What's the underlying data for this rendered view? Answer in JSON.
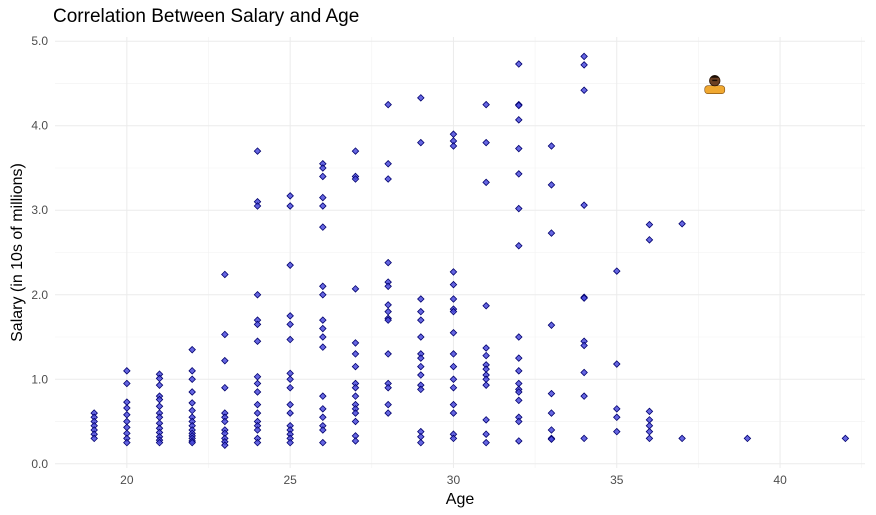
{
  "chart_data": {
    "type": "scatter",
    "title": "Correlation Between Salary and Age",
    "xlabel": "Age",
    "ylabel": "Salary (in 10s of millions)",
    "xlim": [
      17.8,
      42.6
    ],
    "ylim": [
      -0.05,
      5.05
    ],
    "x_ticks": [
      20,
      25,
      30,
      35,
      40
    ],
    "y_ticks": [
      0.0,
      1.0,
      2.0,
      3.0,
      4.0,
      5.0
    ],
    "x_tick_labels": [
      "20",
      "25",
      "30",
      "35",
      "40"
    ],
    "y_tick_labels": [
      "0.0",
      "1.0",
      "2.0",
      "3.0",
      "4.0",
      "5.0"
    ],
    "grid": true,
    "point_color": "#4b4bdc",
    "point_edge_color": "#00006e",
    "highlight": {
      "x": 38.0,
      "y": 4.45,
      "icon": "player-avatar-icon"
    },
    "points": [
      [
        19,
        0.6
      ],
      [
        19,
        0.55
      ],
      [
        19,
        0.5
      ],
      [
        19,
        0.45
      ],
      [
        19,
        0.4
      ],
      [
        19,
        0.35
      ],
      [
        19,
        0.3
      ],
      [
        20,
        1.1
      ],
      [
        20,
        0.95
      ],
      [
        20,
        0.73
      ],
      [
        20,
        0.66
      ],
      [
        20,
        0.58
      ],
      [
        20,
        0.5
      ],
      [
        20,
        0.43
      ],
      [
        20,
        0.36
      ],
      [
        20,
        0.3
      ],
      [
        20,
        0.25
      ],
      [
        21,
        1.06
      ],
      [
        21,
        1.01
      ],
      [
        21,
        0.93
      ],
      [
        21,
        0.8
      ],
      [
        21,
        0.76
      ],
      [
        21,
        0.68
      ],
      [
        21,
        0.6
      ],
      [
        21,
        0.55
      ],
      [
        21,
        0.48
      ],
      [
        21,
        0.42
      ],
      [
        21,
        0.37
      ],
      [
        21,
        0.32
      ],
      [
        21,
        0.28
      ],
      [
        21,
        0.25
      ],
      [
        22,
        1.35
      ],
      [
        22,
        1.1
      ],
      [
        22,
        1.0
      ],
      [
        22,
        0.85
      ],
      [
        22,
        0.72
      ],
      [
        22,
        0.63
      ],
      [
        22,
        0.55
      ],
      [
        22,
        0.5
      ],
      [
        22,
        0.45
      ],
      [
        22,
        0.4
      ],
      [
        22,
        0.36
      ],
      [
        22,
        0.33
      ],
      [
        22,
        0.3
      ],
      [
        22,
        0.27
      ],
      [
        22,
        0.25
      ],
      [
        23,
        2.24
      ],
      [
        23,
        1.53
      ],
      [
        23,
        1.22
      ],
      [
        23,
        0.9
      ],
      [
        23,
        0.6
      ],
      [
        23,
        0.55
      ],
      [
        23,
        0.5
      ],
      [
        23,
        0.4
      ],
      [
        23,
        0.36
      ],
      [
        23,
        0.3
      ],
      [
        23,
        0.26
      ],
      [
        23,
        0.22
      ],
      [
        24,
        3.7
      ],
      [
        24,
        3.1
      ],
      [
        24,
        3.05
      ],
      [
        24,
        2.0
      ],
      [
        24,
        1.7
      ],
      [
        24,
        1.65
      ],
      [
        24,
        1.45
      ],
      [
        24,
        1.03
      ],
      [
        24,
        0.95
      ],
      [
        24,
        0.85
      ],
      [
        24,
        0.7
      ],
      [
        24,
        0.6
      ],
      [
        24,
        0.5
      ],
      [
        24,
        0.45
      ],
      [
        24,
        0.4
      ],
      [
        24,
        0.3
      ],
      [
        24,
        0.25
      ],
      [
        25,
        3.17
      ],
      [
        25,
        3.05
      ],
      [
        25,
        2.35
      ],
      [
        25,
        1.75
      ],
      [
        25,
        1.65
      ],
      [
        25,
        1.47
      ],
      [
        25,
        1.07
      ],
      [
        25,
        1.0
      ],
      [
        25,
        0.9
      ],
      [
        25,
        0.7
      ],
      [
        25,
        0.6
      ],
      [
        25,
        0.45
      ],
      [
        25,
        0.4
      ],
      [
        25,
        0.35
      ],
      [
        25,
        0.3
      ],
      [
        25,
        0.25
      ],
      [
        26,
        3.55
      ],
      [
        26,
        3.5
      ],
      [
        26,
        3.4
      ],
      [
        26,
        3.15
      ],
      [
        26,
        3.05
      ],
      [
        26,
        2.8
      ],
      [
        26,
        2.1
      ],
      [
        26,
        2.0
      ],
      [
        26,
        1.7
      ],
      [
        26,
        1.6
      ],
      [
        26,
        1.5
      ],
      [
        26,
        1.38
      ],
      [
        26,
        0.8
      ],
      [
        26,
        0.65
      ],
      [
        26,
        0.55
      ],
      [
        26,
        0.45
      ],
      [
        26,
        0.4
      ],
      [
        26,
        0.25
      ],
      [
        27,
        3.7
      ],
      [
        27,
        3.4
      ],
      [
        27,
        3.37
      ],
      [
        27,
        2.07
      ],
      [
        27,
        1.43
      ],
      [
        27,
        1.3
      ],
      [
        27,
        1.15
      ],
      [
        27,
        0.95
      ],
      [
        27,
        0.9
      ],
      [
        27,
        0.8
      ],
      [
        27,
        0.7
      ],
      [
        27,
        0.65
      ],
      [
        27,
        0.6
      ],
      [
        27,
        0.5
      ],
      [
        27,
        0.33
      ],
      [
        27,
        0.27
      ],
      [
        28,
        4.25
      ],
      [
        28,
        3.55
      ],
      [
        28,
        3.37
      ],
      [
        28,
        2.38
      ],
      [
        28,
        2.15
      ],
      [
        28,
        2.1
      ],
      [
        28,
        1.88
      ],
      [
        28,
        1.8
      ],
      [
        28,
        1.72
      ],
      [
        28,
        1.7
      ],
      [
        28,
        1.3
      ],
      [
        28,
        0.95
      ],
      [
        28,
        0.9
      ],
      [
        28,
        0.7
      ],
      [
        28,
        0.6
      ],
      [
        29,
        4.33
      ],
      [
        29,
        3.8
      ],
      [
        29,
        1.95
      ],
      [
        29,
        1.8
      ],
      [
        29,
        1.7
      ],
      [
        29,
        1.5
      ],
      [
        29,
        1.3
      ],
      [
        29,
        1.25
      ],
      [
        29,
        1.15
      ],
      [
        29,
        1.05
      ],
      [
        29,
        0.93
      ],
      [
        29,
        0.88
      ],
      [
        29,
        0.38
      ],
      [
        29,
        0.32
      ],
      [
        29,
        0.25
      ],
      [
        30,
        3.9
      ],
      [
        30,
        3.82
      ],
      [
        30,
        3.76
      ],
      [
        30,
        2.27
      ],
      [
        30,
        2.12
      ],
      [
        30,
        1.95
      ],
      [
        30,
        1.83
      ],
      [
        30,
        1.8
      ],
      [
        30,
        1.55
      ],
      [
        30,
        1.3
      ],
      [
        30,
        1.15
      ],
      [
        30,
        1.0
      ],
      [
        30,
        0.9
      ],
      [
        30,
        0.7
      ],
      [
        30,
        0.6
      ],
      [
        30,
        0.35
      ],
      [
        30,
        0.3
      ],
      [
        31,
        4.25
      ],
      [
        31,
        3.8
      ],
      [
        31,
        3.33
      ],
      [
        31,
        1.87
      ],
      [
        31,
        1.37
      ],
      [
        31,
        1.28
      ],
      [
        31,
        1.17
      ],
      [
        31,
        1.12
      ],
      [
        31,
        1.05
      ],
      [
        31,
        1.0
      ],
      [
        31,
        0.93
      ],
      [
        31,
        0.52
      ],
      [
        31,
        0.35
      ],
      [
        31,
        0.25
      ],
      [
        32,
        4.73
      ],
      [
        32,
        4.25
      ],
      [
        32,
        4.24
      ],
      [
        32,
        4.07
      ],
      [
        32,
        3.73
      ],
      [
        32,
        3.43
      ],
      [
        32,
        3.02
      ],
      [
        32,
        2.58
      ],
      [
        32,
        1.5
      ],
      [
        32,
        1.25
      ],
      [
        32,
        1.1
      ],
      [
        32,
        0.95
      ],
      [
        32,
        0.88
      ],
      [
        32,
        0.85
      ],
      [
        32,
        0.75
      ],
      [
        32,
        0.55
      ],
      [
        32,
        0.5
      ],
      [
        32,
        0.27
      ],
      [
        33,
        3.76
      ],
      [
        33,
        3.3
      ],
      [
        33,
        2.73
      ],
      [
        33,
        1.64
      ],
      [
        33,
        0.83
      ],
      [
        33,
        0.6
      ],
      [
        33,
        0.4
      ],
      [
        33,
        0.3
      ],
      [
        33,
        0.29
      ],
      [
        34,
        4.82
      ],
      [
        34,
        4.72
      ],
      [
        34,
        4.42
      ],
      [
        34,
        3.06
      ],
      [
        34,
        1.97
      ],
      [
        34,
        1.96
      ],
      [
        34,
        1.45
      ],
      [
        34,
        1.4
      ],
      [
        34,
        1.08
      ],
      [
        34,
        0.8
      ],
      [
        34,
        0.3
      ],
      [
        35,
        2.28
      ],
      [
        35,
        1.18
      ],
      [
        35,
        0.65
      ],
      [
        35,
        0.55
      ],
      [
        35,
        0.38
      ],
      [
        36,
        2.83
      ],
      [
        36,
        2.65
      ],
      [
        36,
        0.62
      ],
      [
        36,
        0.52
      ],
      [
        36,
        0.45
      ],
      [
        36,
        0.38
      ],
      [
        36,
        0.3
      ],
      [
        37,
        2.84
      ],
      [
        37,
        0.3
      ],
      [
        39,
        0.3
      ],
      [
        42,
        0.3
      ]
    ]
  }
}
